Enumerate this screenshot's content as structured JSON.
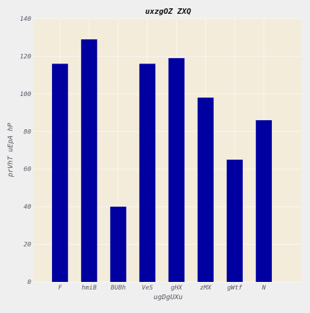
{
  "chart_data": {
    "type": "bar",
    "title": "uxzgOZ ZXQ",
    "xlabel": "ugDgUXu",
    "ylabel": "prVhT uEpA hP",
    "categories": [
      "F",
      "hmiB",
      "BUBh",
      "VeS",
      "gHX",
      "zMX",
      "gWtf",
      "N"
    ],
    "values": [
      116,
      129,
      40,
      116,
      119,
      98,
      65,
      86
    ],
    "ylim": [
      0,
      140
    ],
    "yticks": [
      0,
      20,
      40,
      60,
      80,
      100,
      120,
      140
    ],
    "grid": true,
    "legend": "none",
    "colors": {
      "bar": "#0000a0",
      "plot_background": "#f3ecdb",
      "figure_background": "#efefef",
      "grid": "#faf7f0",
      "text": "#555566",
      "title": "#111111"
    }
  }
}
